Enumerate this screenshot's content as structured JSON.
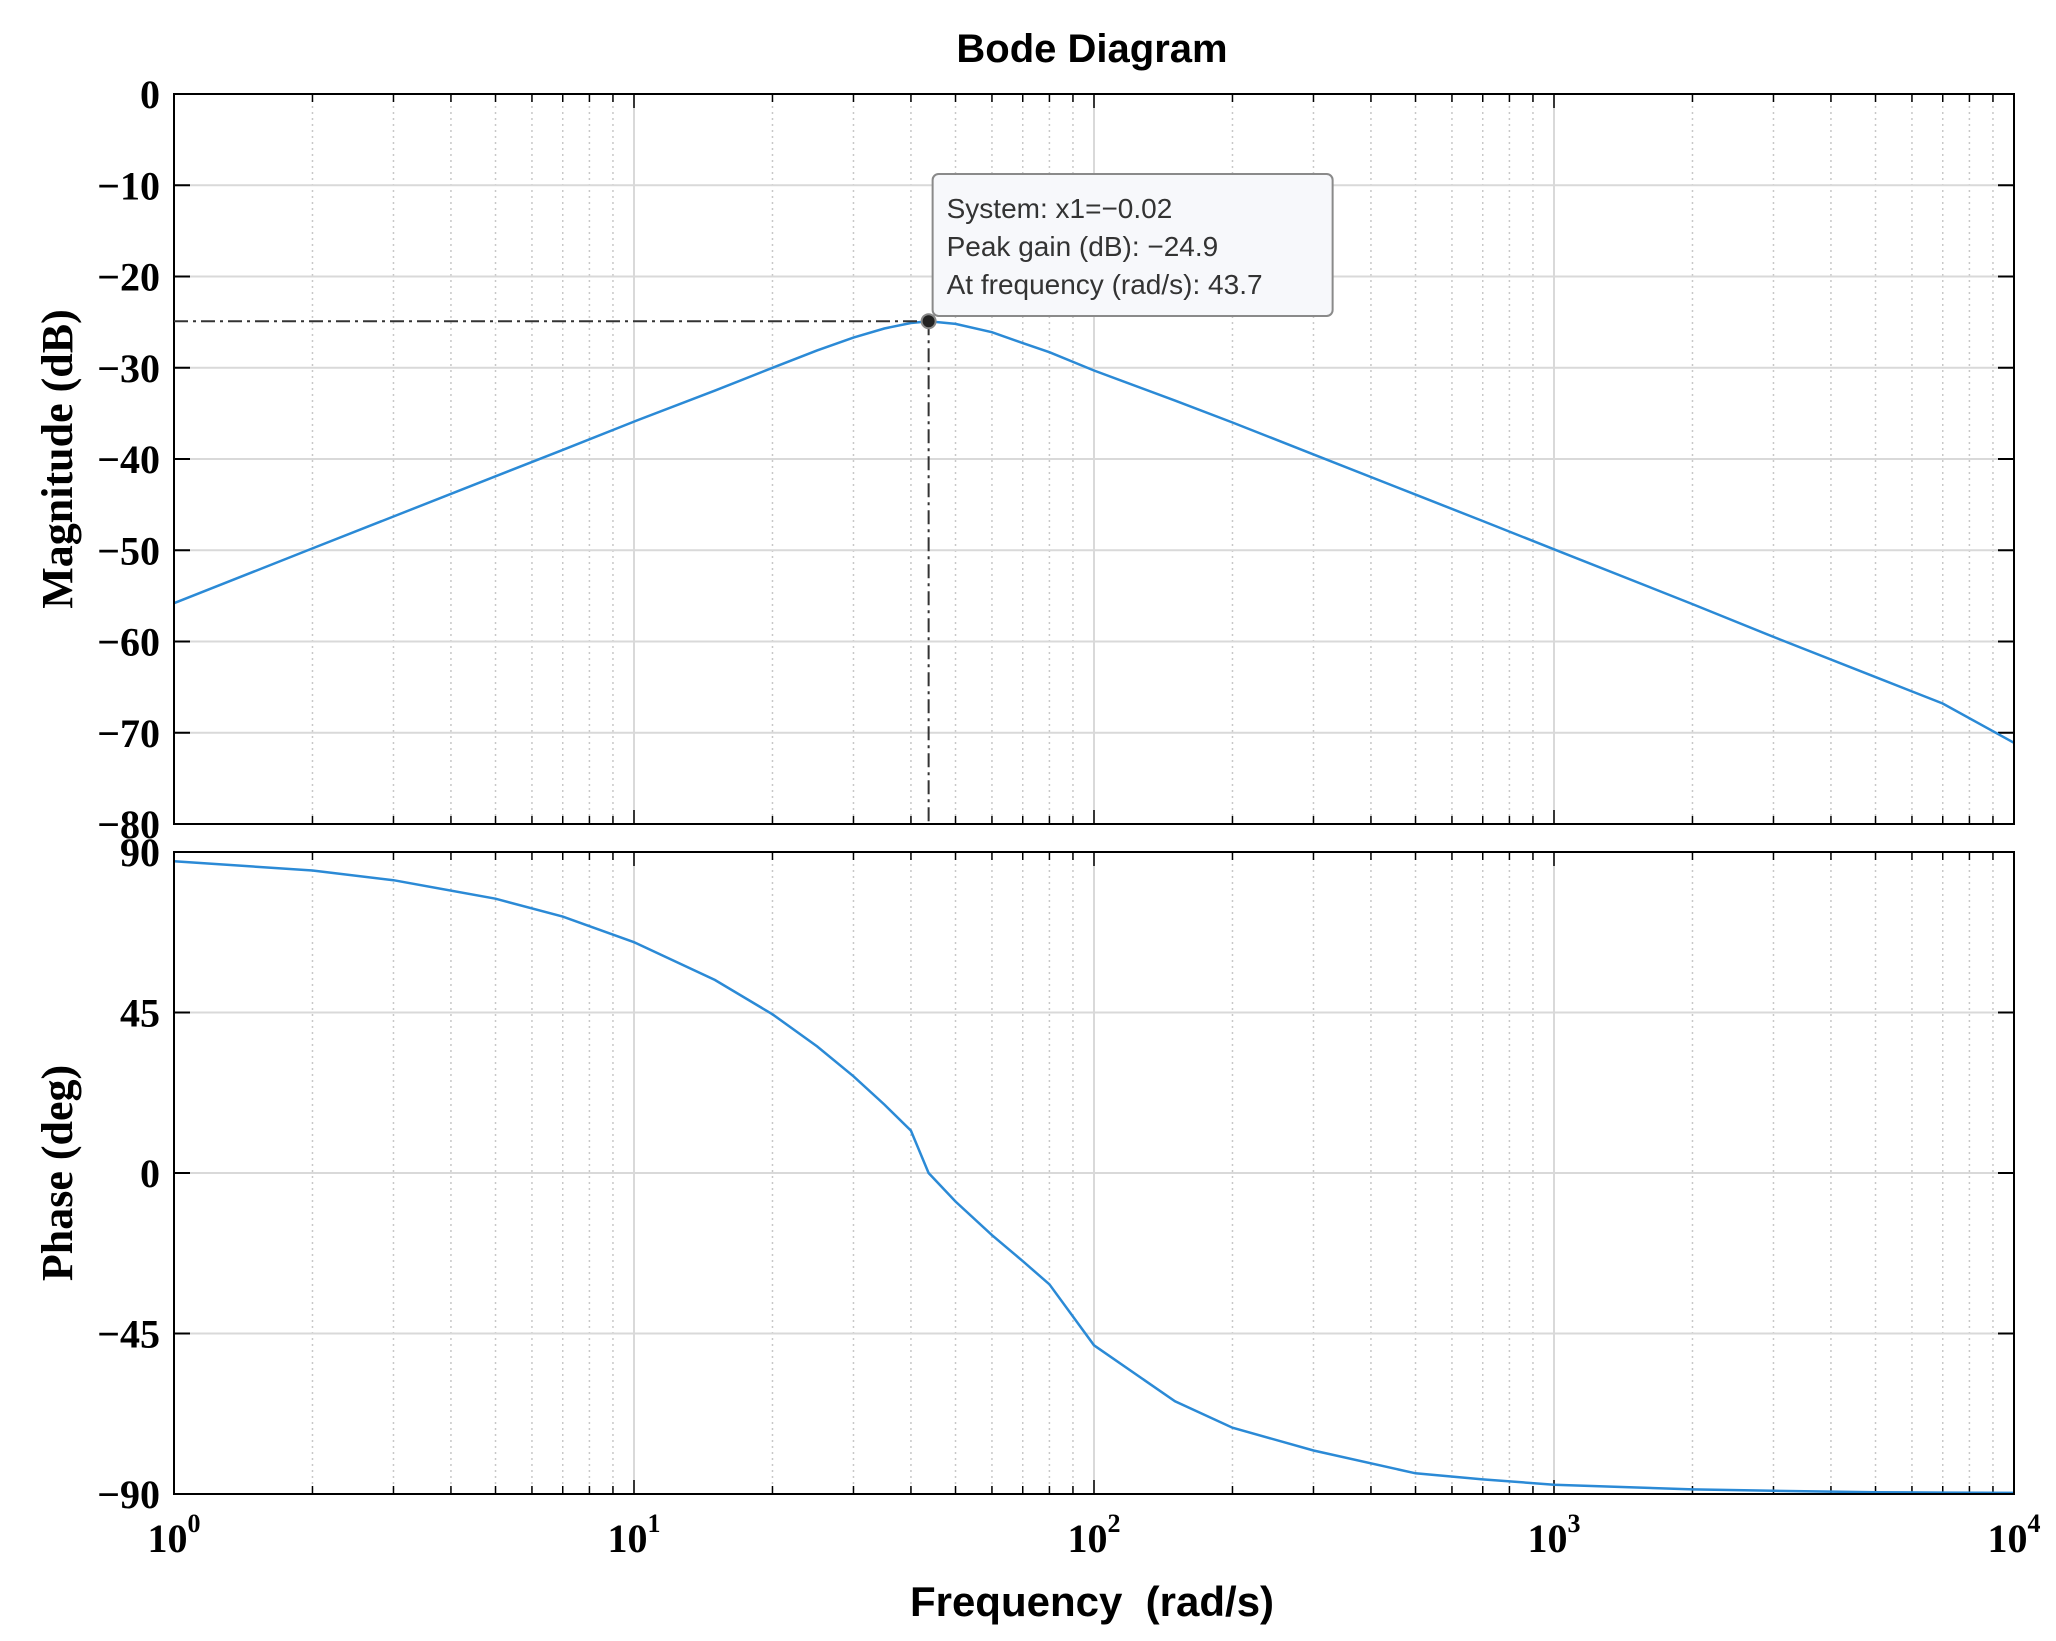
{
  "chart_data": {
    "type": "line",
    "title": "Bode Diagram",
    "xlabel": "Frequency  (rad/s)",
    "xscale": "log",
    "xlim": [
      1,
      10000
    ],
    "xticks": [
      {
        "base": "10",
        "exp": "0"
      },
      {
        "base": "10",
        "exp": "1"
      },
      {
        "base": "10",
        "exp": "2"
      },
      {
        "base": "10",
        "exp": "3"
      },
      {
        "base": "10",
        "exp": "4"
      }
    ],
    "grid": true,
    "line_color": "#2b8ad6",
    "panels": [
      {
        "name": "magnitude",
        "ylabel": "Magnitude (dB)",
        "ylim": [
          -80,
          0
        ],
        "yticks": [
          0,
          -10,
          -20,
          -30,
          -40,
          -50,
          -60,
          -70,
          -80
        ],
        "ytick_labels": [
          "0",
          "−10",
          "−20",
          "−30",
          "−40",
          "−50",
          "−60",
          "−70",
          "−80"
        ],
        "x": [
          1,
          2,
          3,
          5,
          7,
          10,
          15,
          20,
          25,
          30,
          35,
          40,
          43.7,
          50,
          60,
          70,
          80,
          100,
          150,
          200,
          300,
          500,
          700,
          1000,
          2000,
          3000,
          5000,
          7000,
          10000
        ],
        "y": [
          -55.8,
          -49.8,
          -46.3,
          -41.9,
          -39.0,
          -35.9,
          -32.5,
          -30.0,
          -28.1,
          -26.7,
          -25.7,
          -25.1,
          -24.9,
          -25.2,
          -26.1,
          -27.3,
          -28.3,
          -30.3,
          -33.6,
          -36.0,
          -39.5,
          -43.9,
          -46.8,
          -49.9,
          -55.9,
          -59.5,
          -63.9,
          -66.8,
          -71.1
        ]
      },
      {
        "name": "phase",
        "ylabel": "Phase (deg)",
        "ylim": [
          -90,
          90
        ],
        "yticks": [
          90,
          45,
          0,
          -45,
          -90
        ],
        "ytick_labels": [
          "90",
          "45",
          "0",
          "−45",
          "−90"
        ],
        "x": [
          1,
          2,
          3,
          5,
          7,
          10,
          15,
          20,
          25,
          30,
          35,
          40,
          43.7,
          50,
          60,
          70,
          80,
          100,
          150,
          200,
          300,
          500,
          700,
          1000,
          2000,
          3000,
          5000,
          7000,
          10000
        ],
        "y": [
          87.4,
          84.8,
          82.1,
          76.9,
          71.9,
          64.7,
          54.1,
          44.5,
          35.5,
          27.1,
          19.2,
          11.9,
          0,
          -8.0,
          -17.4,
          -24.7,
          -31.2,
          -48.3,
          -64.0,
          -71.4,
          -77.8,
          -84.2,
          -85.9,
          -87.4,
          -88.7,
          -89.1,
          -89.5,
          -89.6,
          -89.7
        ]
      }
    ],
    "annotation": {
      "lines": [
        "System: x1=−0.02",
        "Peak gain (dB): −24.9",
        "At frequency (rad/s): 43.7"
      ],
      "x": 43.7,
      "y": -24.9
    }
  }
}
